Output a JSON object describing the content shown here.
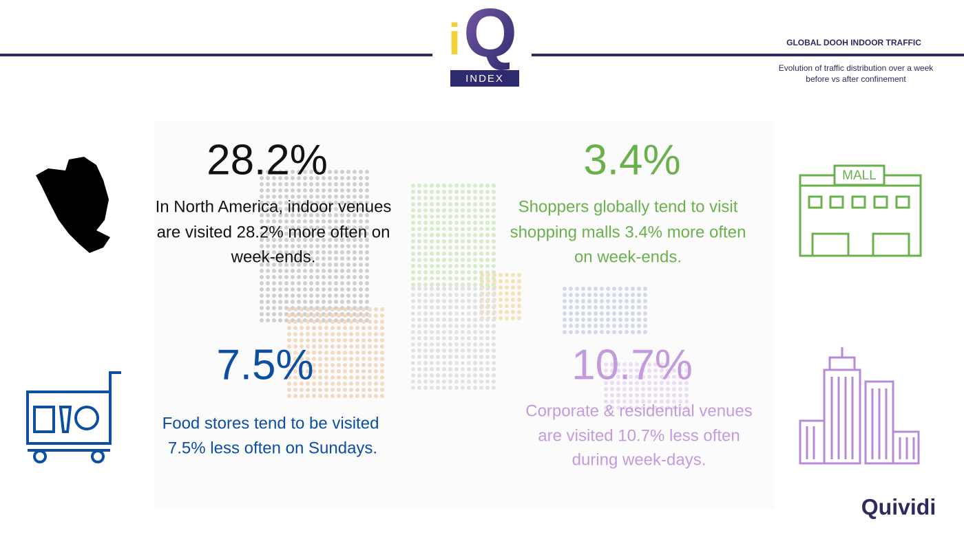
{
  "header": {
    "logo": {
      "letter_i": "i",
      "letter_q": "Q",
      "tag": "INDEX"
    },
    "title": "GLOBAL DOOH INDOOR TRAFFIC",
    "subtitle": [
      "Evolution of traffic distribution over a week",
      "before vs after confinement"
    ]
  },
  "stats": [
    {
      "value": "28.2%",
      "text": [
        "In North America, indoor venues",
        "are visited 28.2% more often on",
        "week-ends."
      ]
    },
    {
      "value": "3.4%",
      "text": [
        "Shoppers globally tend to visit",
        "shopping malls 3.4% more often",
        "on week-ends."
      ]
    },
    {
      "value": "7.5%",
      "text": [
        "Food stores tend to be visited",
        "7.5% less often on Sundays."
      ]
    },
    {
      "value": "10.7%",
      "text": [
        "Corporate & residential venues",
        "are visited 10.7% less often",
        "during week-days."
      ]
    }
  ],
  "icons": {
    "mall_sign": "MALL"
  },
  "brand": "Quividi"
}
